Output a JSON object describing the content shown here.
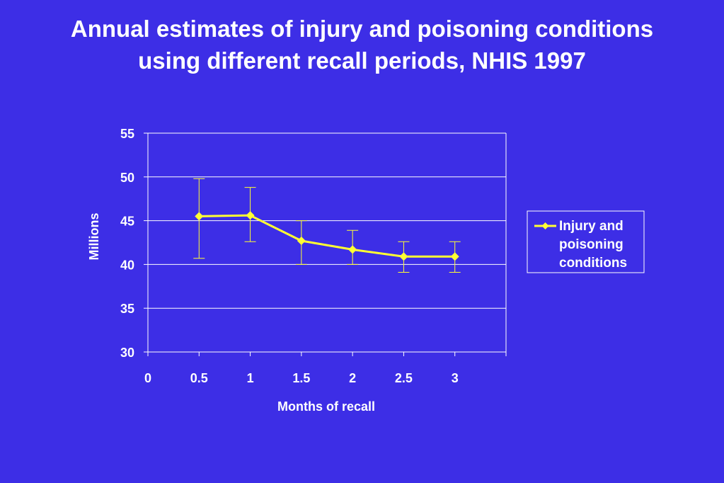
{
  "slide": {
    "title": "Annual estimates of injury and poisoning conditions using different recall periods, NHIS 1997"
  },
  "chart_data": {
    "type": "line",
    "title": "",
    "xlabel": "Months of recall",
    "ylabel": "Millions",
    "x_ticks": [
      "0",
      "0.5",
      "1",
      "1.5",
      "2",
      "2.5",
      "3"
    ],
    "y_ticks": [
      "30",
      "35",
      "40",
      "45",
      "50",
      "55"
    ],
    "xlim": [
      0,
      3.5
    ],
    "ylim": [
      30,
      55
    ],
    "grid": "horizontal",
    "legend_position": "right",
    "series": [
      {
        "name": "Injury and poisoning conditions",
        "legend_lines": [
          "Injury and",
          "poisoning",
          "conditions"
        ],
        "color": "#ffff33",
        "marker": "diamond",
        "x": [
          0.5,
          1,
          1.5,
          2,
          2.5,
          3
        ],
        "y": [
          45.5,
          45.6,
          42.7,
          41.7,
          40.9,
          40.9
        ],
        "error_low": [
          40.7,
          42.6,
          40.0,
          40.0,
          39.1,
          39.1
        ],
        "error_high": [
          49.8,
          48.8,
          45.0,
          43.9,
          42.6,
          42.6
        ]
      }
    ]
  },
  "colors": {
    "background": "#3d2ee6",
    "axis": "#ffffff",
    "series": "#ffff33"
  }
}
